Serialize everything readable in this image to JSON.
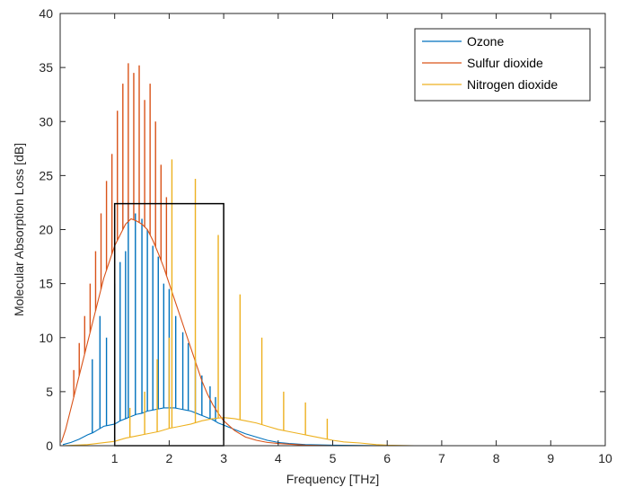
{
  "chart_data": {
    "type": "line",
    "xlabel": "Frequency [THz]",
    "ylabel": "Molecular Absorption Loss [dB]",
    "xlim": [
      0,
      10
    ],
    "ylim": [
      0,
      40
    ],
    "xticks": [
      1,
      2,
      3,
      4,
      5,
      6,
      7,
      8,
      9,
      10
    ],
    "yticks": [
      0,
      5,
      10,
      15,
      20,
      25,
      30,
      35,
      40
    ],
    "grid": false,
    "legend_position": "top-right",
    "series": [
      {
        "name": "Ozone",
        "color": "#0072BD",
        "x": [
          0.05,
          0.2,
          0.35,
          0.5,
          0.6,
          0.7,
          0.8,
          0.9,
          1.0,
          1.1,
          1.2,
          1.3,
          1.4,
          1.5,
          1.6,
          1.7,
          1.8,
          1.9,
          2.0,
          2.1,
          2.2,
          2.3,
          2.4,
          2.5,
          2.6,
          2.7,
          2.8,
          2.9,
          3.0,
          3.2,
          3.4,
          3.6,
          3.8,
          4.0,
          4.2,
          4.5,
          5.0,
          6.0,
          7.0,
          8.0,
          9.0,
          10.0
        ],
        "y": [
          0.1,
          0.3,
          0.6,
          1.0,
          1.2,
          1.5,
          1.8,
          1.9,
          2.0,
          2.3,
          2.5,
          2.7,
          2.9,
          3.0,
          3.2,
          3.3,
          3.4,
          3.5,
          3.5,
          3.5,
          3.4,
          3.3,
          3.2,
          3.0,
          2.8,
          2.6,
          2.4,
          2.1,
          1.9,
          1.5,
          1.1,
          0.8,
          0.5,
          0.3,
          0.2,
          0.1,
          0.05,
          0.0,
          0.0,
          0.0,
          0.0,
          0.0
        ],
        "peaks": [
          {
            "x": 0.59,
            "y": 8.0
          },
          {
            "x": 0.73,
            "y": 12.0
          },
          {
            "x": 0.85,
            "y": 10.0
          },
          {
            "x": 1.0,
            "y": 15.0
          },
          {
            "x": 1.1,
            "y": 17.0
          },
          {
            "x": 1.2,
            "y": 18.0
          },
          {
            "x": 1.25,
            "y": 22.5
          },
          {
            "x": 1.38,
            "y": 21.5
          },
          {
            "x": 1.5,
            "y": 21.0
          },
          {
            "x": 1.6,
            "y": 20.0
          },
          {
            "x": 1.7,
            "y": 18.5
          },
          {
            "x": 1.8,
            "y": 17.5
          },
          {
            "x": 1.9,
            "y": 15.0
          },
          {
            "x": 2.0,
            "y": 14.5
          },
          {
            "x": 2.12,
            "y": 12.0
          },
          {
            "x": 2.25,
            "y": 10.5
          },
          {
            "x": 2.35,
            "y": 9.5
          },
          {
            "x": 2.48,
            "y": 8.0
          },
          {
            "x": 2.6,
            "y": 6.5
          },
          {
            "x": 2.75,
            "y": 5.5
          },
          {
            "x": 2.85,
            "y": 4.5
          }
        ]
      },
      {
        "name": "Sulfur dioxide",
        "color": "#D95319",
        "x": [
          0.02,
          0.1,
          0.2,
          0.3,
          0.4,
          0.5,
          0.6,
          0.7,
          0.8,
          0.9,
          1.0,
          1.1,
          1.2,
          1.3,
          1.4,
          1.5,
          1.6,
          1.7,
          1.8,
          1.9,
          2.0,
          2.1,
          2.2,
          2.3,
          2.4,
          2.5,
          2.6,
          2.7,
          2.8,
          2.9,
          3.0,
          3.2,
          3.4,
          3.6,
          3.8,
          4.0,
          4.5,
          5.0,
          6.0,
          10.0
        ],
        "y": [
          0.3,
          1.5,
          3.5,
          5.5,
          7.5,
          9.5,
          11.5,
          13.5,
          15.5,
          17.0,
          18.5,
          19.5,
          20.5,
          21.0,
          20.8,
          20.5,
          20.0,
          19.0,
          17.8,
          16.5,
          15.0,
          13.5,
          12.0,
          10.5,
          9.0,
          7.5,
          6.0,
          4.8,
          3.8,
          3.0,
          2.3,
          1.4,
          0.8,
          0.5,
          0.3,
          0.2,
          0.05,
          0.0,
          0.0,
          0.0
        ],
        "peaks": [
          {
            "x": 0.25,
            "y": 7.0
          },
          {
            "x": 0.35,
            "y": 9.5
          },
          {
            "x": 0.45,
            "y": 12.0
          },
          {
            "x": 0.55,
            "y": 15.0
          },
          {
            "x": 0.65,
            "y": 18.0
          },
          {
            "x": 0.75,
            "y": 21.5
          },
          {
            "x": 0.85,
            "y": 24.5
          },
          {
            "x": 0.95,
            "y": 27.0
          },
          {
            "x": 1.05,
            "y": 31.0
          },
          {
            "x": 1.15,
            "y": 33.5
          },
          {
            "x": 1.25,
            "y": 35.4
          },
          {
            "x": 1.35,
            "y": 34.5
          },
          {
            "x": 1.45,
            "y": 35.2
          },
          {
            "x": 1.55,
            "y": 32.0
          },
          {
            "x": 1.65,
            "y": 33.5
          },
          {
            "x": 1.75,
            "y": 30.0
          },
          {
            "x": 1.85,
            "y": 26.0
          },
          {
            "x": 1.95,
            "y": 23.0
          }
        ]
      },
      {
        "name": "Nitrogen dioxide",
        "color": "#EDB120",
        "x": [
          0.05,
          0.5,
          1.0,
          1.2,
          1.4,
          1.6,
          1.8,
          2.0,
          2.2,
          2.4,
          2.6,
          2.8,
          3.0,
          3.2,
          3.4,
          3.6,
          3.8,
          4.0,
          4.2,
          4.4,
          4.6,
          4.8,
          5.0,
          5.2,
          5.5,
          5.8,
          6.0,
          6.5,
          7.0,
          10.0
        ],
        "y": [
          0.0,
          0.1,
          0.4,
          0.7,
          0.9,
          1.1,
          1.3,
          1.6,
          1.8,
          2.0,
          2.3,
          2.5,
          2.6,
          2.5,
          2.3,
          2.1,
          1.8,
          1.5,
          1.3,
          1.1,
          0.9,
          0.7,
          0.5,
          0.35,
          0.25,
          0.1,
          0.05,
          0.0,
          0.0,
          0.0
        ],
        "peaks": [
          {
            "x": 1.28,
            "y": 3.5
          },
          {
            "x": 1.55,
            "y": 5.0
          },
          {
            "x": 1.78,
            "y": 8.0
          },
          {
            "x": 2.0,
            "y": 10.0
          },
          {
            "x": 2.05,
            "y": 26.5
          },
          {
            "x": 2.48,
            "y": 24.7
          },
          {
            "x": 2.9,
            "y": 19.5
          },
          {
            "x": 3.3,
            "y": 14.0
          },
          {
            "x": 3.7,
            "y": 10.0
          },
          {
            "x": 4.1,
            "y": 5.0
          },
          {
            "x": 4.5,
            "y": 4.0
          },
          {
            "x": 4.9,
            "y": 2.5
          }
        ]
      }
    ],
    "annotations": [
      {
        "type": "rectangle",
        "x": [
          1.0,
          3.0
        ],
        "y": [
          0.0,
          22.4
        ],
        "color": "#000000"
      }
    ]
  }
}
